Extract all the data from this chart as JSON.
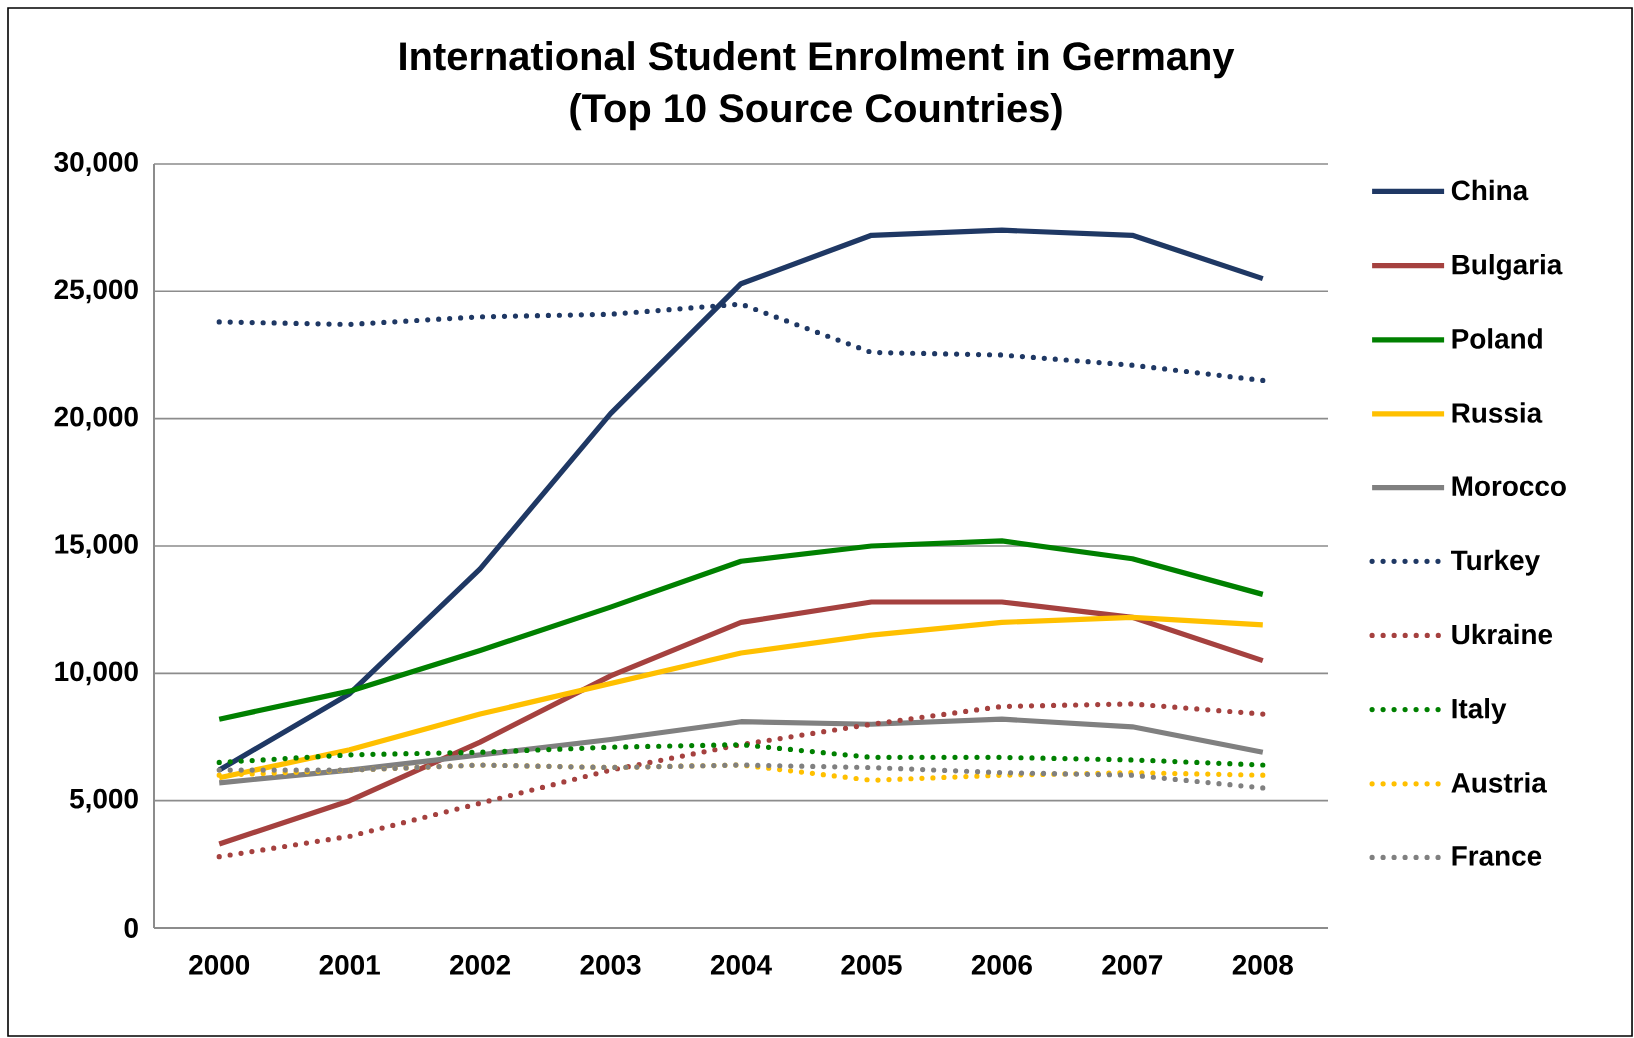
{
  "chart_data": {
    "type": "line",
    "title": "International Student Enrolment in Germany",
    "subtitle": "(Top 10 Source Countries)",
    "categories": [
      "2000",
      "2001",
      "2002",
      "2003",
      "2004",
      "2005",
      "2006",
      "2007",
      "2008"
    ],
    "ylim": [
      0,
      30000
    ],
    "yticks": [
      {
        "value": 0,
        "label": "0"
      },
      {
        "value": 5000,
        "label": "5,000"
      },
      {
        "value": 10000,
        "label": "10,000"
      },
      {
        "value": 15000,
        "label": "15,000"
      },
      {
        "value": 20000,
        "label": "20,000"
      },
      {
        "value": 25000,
        "label": "25,000"
      },
      {
        "value": 30000,
        "label": "30,000"
      }
    ],
    "grid": "y",
    "legend": "right",
    "marker": "none",
    "series": [
      {
        "name": "China",
        "color": "#1f3864",
        "line_style": "solid",
        "values": [
          6200,
          9200,
          14100,
          20200,
          25300,
          27200,
          27400,
          27200,
          25500
        ]
      },
      {
        "name": "Bulgaria",
        "color": "#a5413f",
        "line_style": "solid",
        "values": [
          3300,
          5000,
          7300,
          9900,
          12000,
          12800,
          12800,
          12200,
          10500
        ]
      },
      {
        "name": "Poland",
        "color": "#008000",
        "line_style": "solid",
        "values": [
          8200,
          9300,
          10900,
          12600,
          14400,
          15000,
          15200,
          14500,
          13100
        ]
      },
      {
        "name": "Russia",
        "color": "#ffc000",
        "line_style": "solid",
        "values": [
          5900,
          7000,
          8400,
          9600,
          10800,
          11500,
          12000,
          12200,
          11900
        ]
      },
      {
        "name": "Morocco",
        "color": "#808080",
        "line_style": "solid",
        "values": [
          5700,
          6200,
          6800,
          7400,
          8100,
          8000,
          8200,
          7900,
          6900
        ]
      },
      {
        "name": "Turkey",
        "color": "#1f3864",
        "line_style": "dotted",
        "values": [
          23800,
          23700,
          24000,
          24100,
          24500,
          22600,
          22500,
          22100,
          21500
        ]
      },
      {
        "name": "Ukraine",
        "color": "#a5413f",
        "line_style": "dotted",
        "values": [
          2800,
          3600,
          4900,
          6200,
          7200,
          8000,
          8700,
          8800,
          8400
        ]
      },
      {
        "name": "Italy",
        "color": "#008000",
        "line_style": "dotted",
        "values": [
          6500,
          6800,
          6900,
          7100,
          7200,
          6700,
          6700,
          6600,
          6400
        ]
      },
      {
        "name": "Austria",
        "color": "#ffc000",
        "line_style": "dotted",
        "values": [
          6000,
          6200,
          6400,
          6300,
          6400,
          5800,
          6000,
          6100,
          6000
        ]
      },
      {
        "name": "France",
        "color": "#808080",
        "line_style": "dotted",
        "values": [
          6200,
          6200,
          6400,
          6300,
          6400,
          6300,
          6100,
          6000,
          5500
        ]
      }
    ]
  }
}
